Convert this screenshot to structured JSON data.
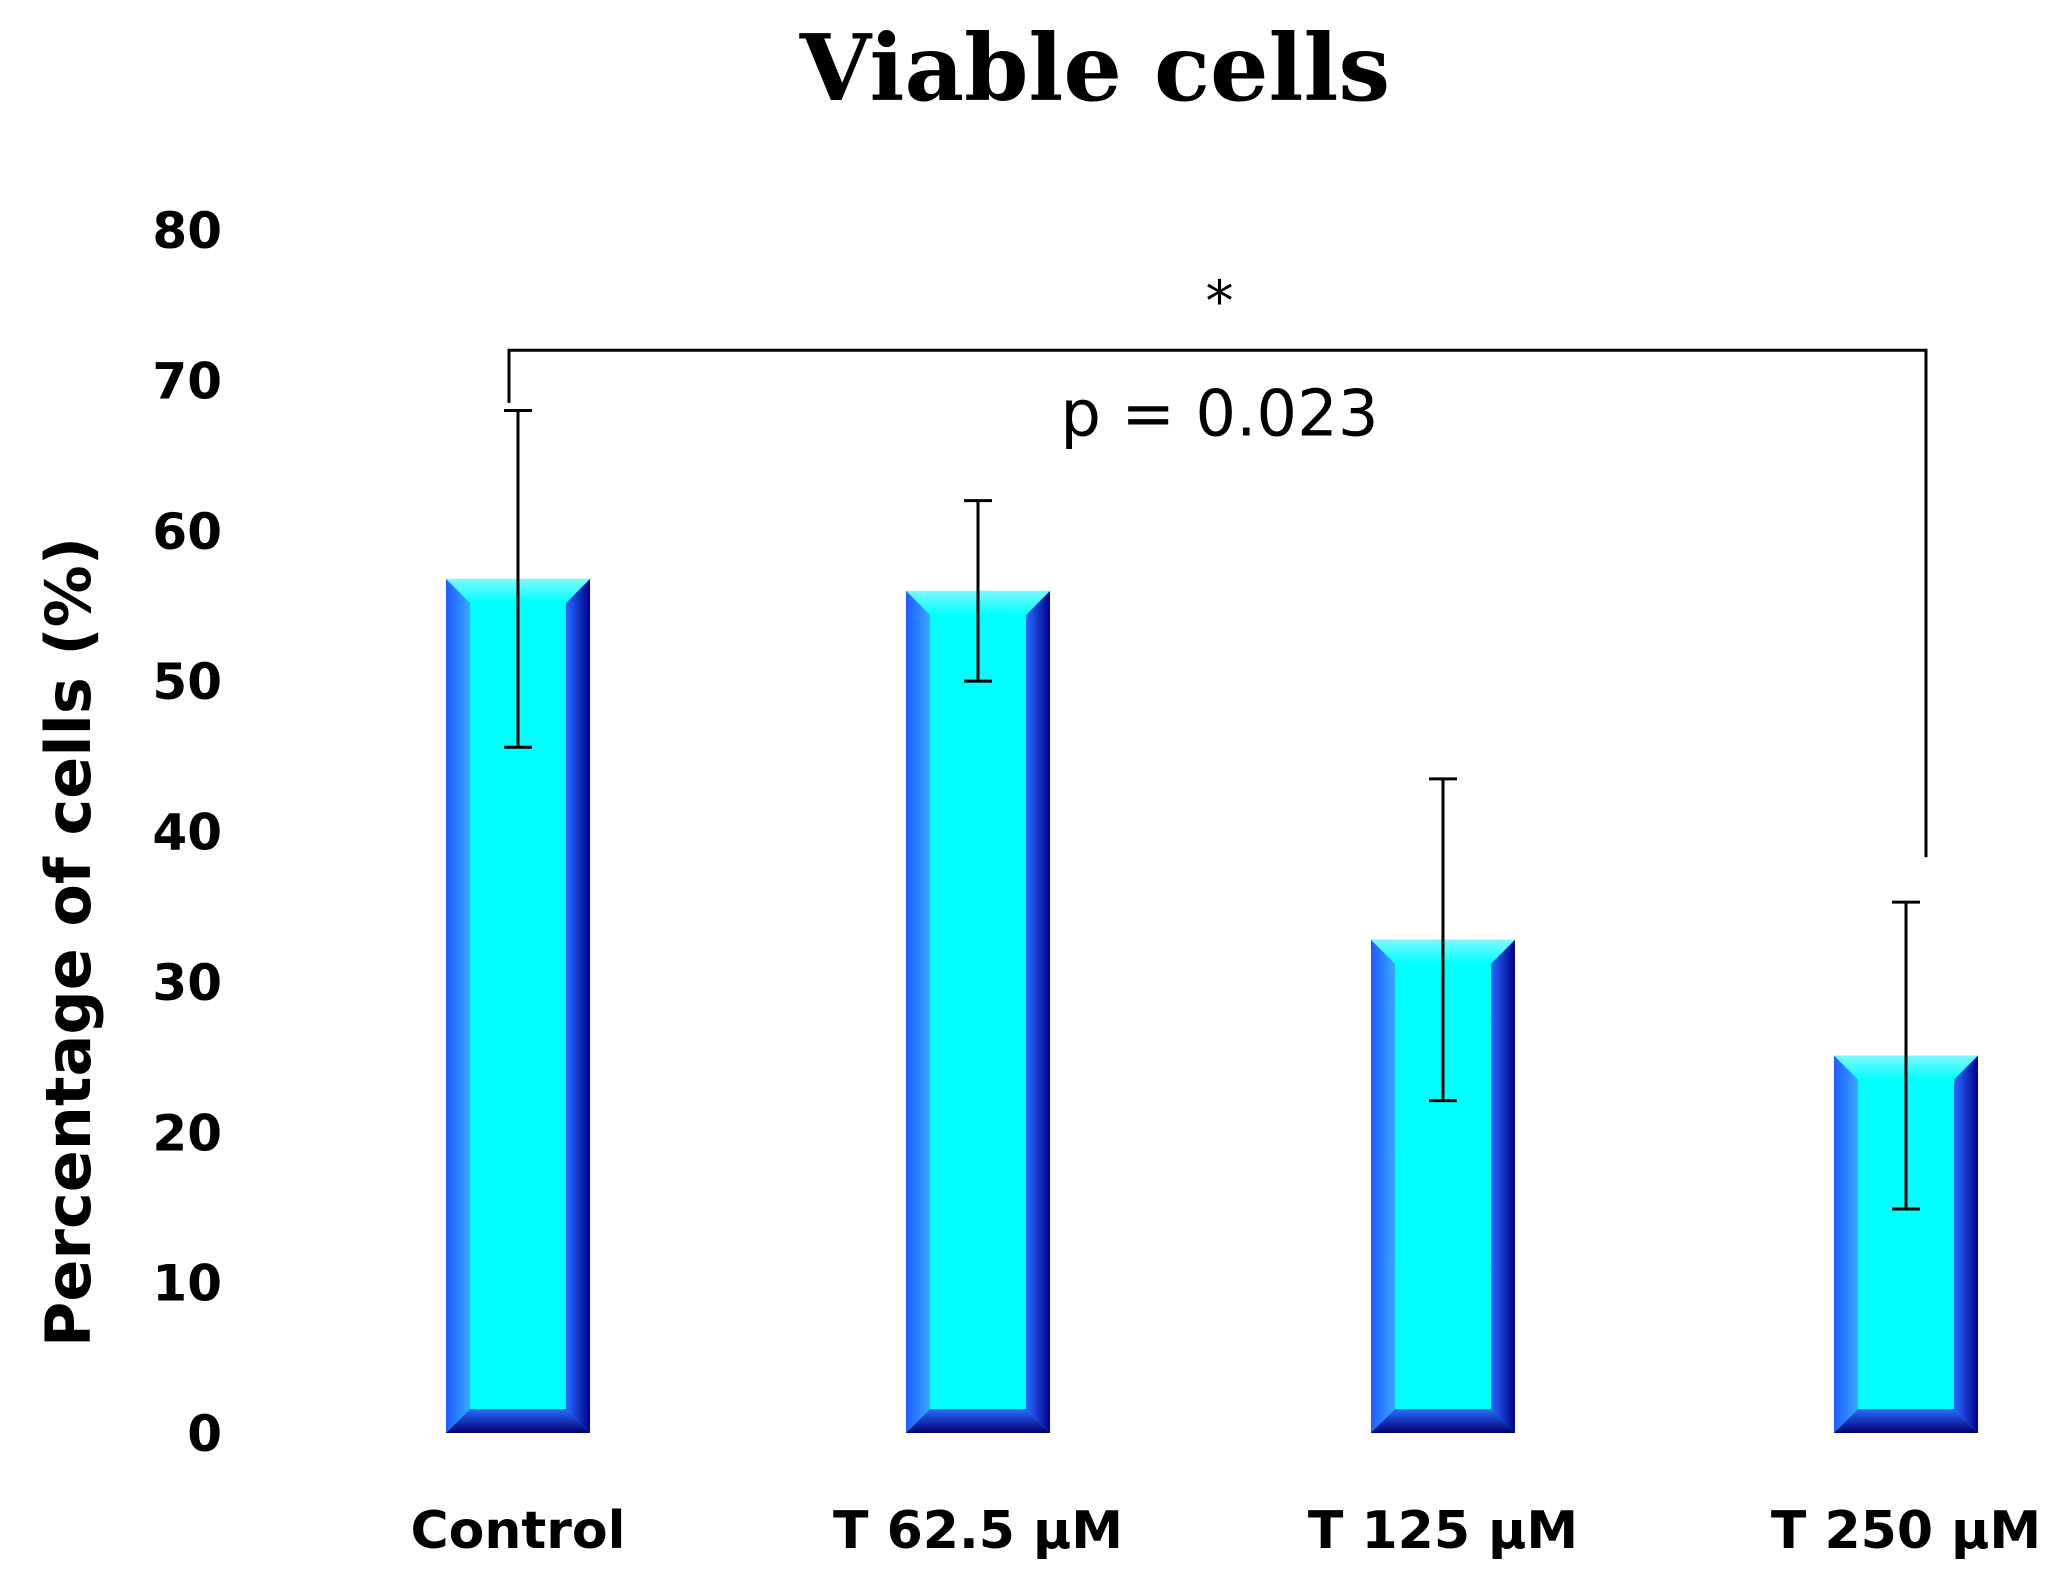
{
  "chart_data": {
    "type": "bar",
    "title": "Viable cells",
    "xlabel": "",
    "ylabel": "Percentage of cells (%)",
    "categories": [
      "Control",
      "T 62.5 µM",
      "T 125 µM",
      "T 250 µM"
    ],
    "values": [
      56.8,
      56,
      32.8,
      25.1
    ],
    "errors": [
      11.2,
      6,
      10.7,
      10.2
    ],
    "ylim": [
      0,
      80
    ],
    "yticks": [
      0,
      10,
      20,
      30,
      40,
      50,
      60,
      70,
      80
    ],
    "grid": false,
    "significance": {
      "from": "Control",
      "to": "T 250 µM",
      "level": 72,
      "marker": "*",
      "label": "p = 0.023"
    },
    "colors": {
      "bar_fill": "#00FFFF",
      "bar_bevel_dark": "#00008B",
      "bar_bevel_mid": "#1E5BFF",
      "text": "#000000"
    }
  }
}
